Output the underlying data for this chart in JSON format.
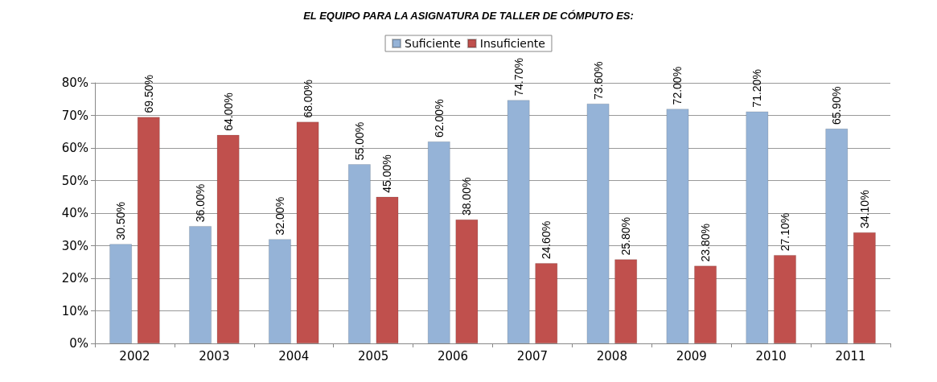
{
  "chart_data": {
    "type": "bar",
    "title": "EL EQUIPO PARA LA ASIGNATURA DE TALLER DE CÓMPUTO ES:",
    "categories": [
      "2002",
      "2003",
      "2004",
      "2005",
      "2006",
      "2007",
      "2008",
      "2009",
      "2010",
      "2011"
    ],
    "series": [
      {
        "name": "Suficiente",
        "color": "#95b3d7",
        "values": [
          30.5,
          36,
          32,
          55,
          62,
          74.7,
          73.6,
          72,
          71.2,
          65.9
        ],
        "value_labels": [
          "30.50%",
          "36.00%",
          "32.00%",
          "55.00%",
          "62.00%",
          "74.70%",
          "73.60%",
          "72.00%",
          "71.20%",
          "65.90%"
        ]
      },
      {
        "name": "Insuficiente",
        "color": "#c0504d",
        "values": [
          69.5,
          64,
          68,
          45,
          38,
          24.6,
          25.8,
          23.8,
          27.1,
          34.1
        ],
        "value_labels": [
          "69.50%",
          "64.00%",
          "68.00%",
          "45.00%",
          "38.00%",
          "24.60%",
          "25.80%",
          "23.80%",
          "27.10%",
          "34.10%"
        ]
      }
    ],
    "ylim": [
      0,
      80
    ],
    "yticks": [
      {
        "value": 0,
        "label": "0%"
      },
      {
        "value": 10,
        "label": "10%"
      },
      {
        "value": 20,
        "label": "20%"
      },
      {
        "value": 30,
        "label": "30%"
      },
      {
        "value": 40,
        "label": "40%"
      },
      {
        "value": 50,
        "label": "50%"
      },
      {
        "value": 60,
        "label": "60%"
      },
      {
        "value": 70,
        "label": "70%"
      },
      {
        "value": 80,
        "label": "80%"
      }
    ],
    "grid": "y",
    "legend": "top"
  }
}
